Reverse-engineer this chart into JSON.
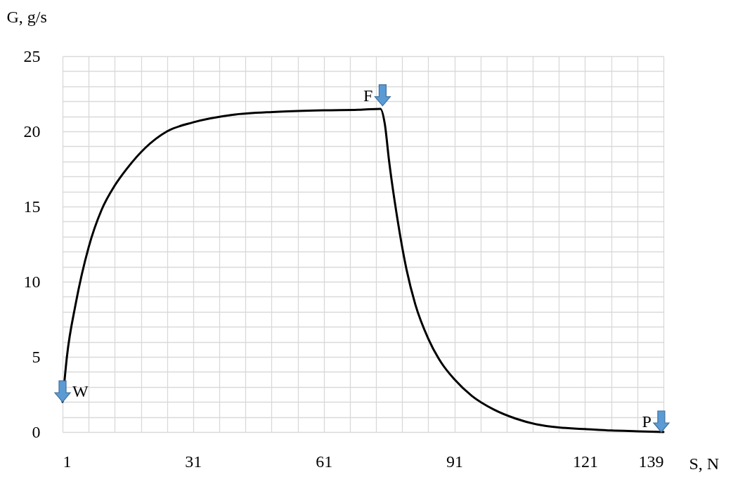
{
  "chart_data": {
    "type": "line",
    "xlabel": "S, N",
    "ylabel": "G, g/s",
    "series": [
      {
        "color": "#000000",
        "x": [
          1,
          2,
          4,
          7,
          10,
          13,
          16,
          20,
          25,
          31,
          40,
          50,
          61,
          70,
          74,
          75,
          76,
          78,
          80,
          82,
          85,
          88,
          91,
          95,
          100,
          105,
          110,
          115,
          121,
          127,
          133,
          139
        ],
        "values": [
          2,
          5,
          8.5,
          12.3,
          14.8,
          16.4,
          17.6,
          18.9,
          20,
          20.6,
          21.1,
          21.3,
          21.4,
          21.45,
          21.5,
          20.5,
          18,
          14,
          10.8,
          8.5,
          6.2,
          4.6,
          3.5,
          2.4,
          1.5,
          0.9,
          0.5,
          0.3,
          0.2,
          0.1,
          0.05,
          0
        ]
      }
    ],
    "xlim": [
      1,
      139
    ],
    "ylim": [
      0,
      25
    ],
    "xticks": [
      1,
      {
        "value": 7,
        "label": null
      },
      {
        "value": 13,
        "label": null
      },
      {
        "value": 19,
        "label": null
      },
      {
        "value": 25,
        "label": null
      },
      31,
      {
        "value": 37,
        "label": null
      },
      {
        "value": 43,
        "label": null
      },
      {
        "value": 49,
        "label": null
      },
      {
        "value": 55,
        "label": null
      },
      61,
      {
        "value": 67,
        "label": null
      },
      {
        "value": 73,
        "label": null
      },
      {
        "value": 79,
        "label": null
      },
      {
        "value": 85,
        "label": null
      },
      91,
      {
        "value": 97,
        "label": null
      },
      {
        "value": 103,
        "label": null
      },
      {
        "value": 109,
        "label": null
      },
      {
        "value": 115,
        "label": null
      },
      121,
      {
        "value": 127,
        "label": null
      },
      {
        "value": 133,
        "label": null
      },
      139
    ],
    "yticks": [
      0,
      {
        "value": 1,
        "label": null
      },
      {
        "value": 2,
        "label": null
      },
      {
        "value": 3,
        "label": null
      },
      {
        "value": 4,
        "label": null
      },
      5,
      {
        "value": 6,
        "label": null
      },
      {
        "value": 7,
        "label": null
      },
      {
        "value": 8,
        "label": null
      },
      {
        "value": 9,
        "label": null
      },
      10,
      {
        "value": 11,
        "label": null
      },
      {
        "value": 12,
        "label": null
      },
      {
        "value": 13,
        "label": null
      },
      {
        "value": 14,
        "label": null
      },
      15,
      {
        "value": 16,
        "label": null
      },
      {
        "value": 17,
        "label": null
      },
      {
        "value": 18,
        "label": null
      },
      {
        "value": 19,
        "label": null
      },
      20,
      {
        "value": 21,
        "label": null
      },
      {
        "value": 22,
        "label": null
      },
      {
        "value": 23,
        "label": null
      },
      {
        "value": 24,
        "label": null
      },
      25
    ],
    "grid": true,
    "marker": "none",
    "line_style": "solid",
    "annotations": [
      {
        "text": "W",
        "x": 1,
        "y": 2
      },
      {
        "text": "F",
        "x": 74.5,
        "y": 21.7
      },
      {
        "text": "P",
        "x": 138.5,
        "y": 0
      }
    ]
  }
}
